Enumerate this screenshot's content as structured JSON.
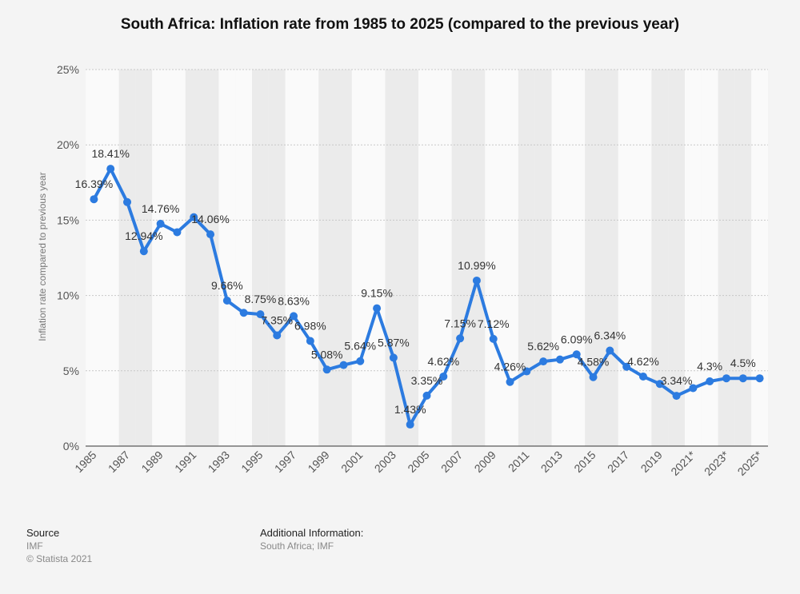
{
  "title": "South Africa: Inflation rate from 1985 to 2025 (compared to the previous year)",
  "footer": {
    "source_heading": "Source",
    "source_name": "IMF",
    "copyright": "© Statista 2021",
    "info_heading": "Additional Information:",
    "info_text": "South Africa; IMF"
  },
  "colors": {
    "line": "#2c7be0",
    "band": "#ebebeb",
    "background": "#f4f4f4"
  },
  "chart_data": {
    "type": "line",
    "ylabel": "Inflation rate compared to previous year",
    "ylim": [
      0,
      25
    ],
    "yticks": [
      0,
      5,
      10,
      15,
      20,
      25
    ],
    "ytick_labels": [
      "0%",
      "5%",
      "10%",
      "15%",
      "20%",
      "25%"
    ],
    "xtick_labels": [
      "1985",
      "1987",
      "1989",
      "1991",
      "1993",
      "1995",
      "1997",
      "1999",
      "2001",
      "2003",
      "2005",
      "2007",
      "2009",
      "2011",
      "2013",
      "2015",
      "2017",
      "2019",
      "2021*",
      "2023*",
      "2025*"
    ],
    "grid": true,
    "series": [
      {
        "x": [
          1985,
          1986,
          1987,
          1988,
          1989,
          1990,
          1991,
          1992,
          1993,
          1994,
          1995,
          1996,
          1997,
          1998,
          1999,
          2000,
          2001,
          2002,
          2003,
          2004,
          2005,
          2006,
          2007,
          2008,
          2009,
          2010,
          2011,
          2012,
          2013,
          2014,
          2015,
          2016,
          2017,
          2018,
          2019,
          2020,
          2021,
          2022,
          2023,
          2024,
          2025
        ],
        "values": [
          16.39,
          18.41,
          16.2,
          12.94,
          14.76,
          14.2,
          15.2,
          14.06,
          9.66,
          8.85,
          8.75,
          7.35,
          8.63,
          6.98,
          5.08,
          5.38,
          5.64,
          9.15,
          5.87,
          1.43,
          3.35,
          4.62,
          7.15,
          10.99,
          7.12,
          4.26,
          4.96,
          5.62,
          5.75,
          6.09,
          4.58,
          6.34,
          5.27,
          4.62,
          4.13,
          3.34,
          3.85,
          4.3,
          4.5,
          4.5,
          4.5
        ]
      }
    ],
    "data_labels": [
      {
        "year": 1985,
        "text": "16.39%"
      },
      {
        "year": 1986,
        "text": "18.41%"
      },
      {
        "year": 1988,
        "text": "12.94%"
      },
      {
        "year": 1989,
        "text": "14.76%"
      },
      {
        "year": 1992,
        "text": "14.06%"
      },
      {
        "year": 1993,
        "text": "9.66%"
      },
      {
        "year": 1995,
        "text": "8.75%"
      },
      {
        "year": 1996,
        "text": "7.35%"
      },
      {
        "year": 1997,
        "text": "8.63%"
      },
      {
        "year": 1998,
        "text": "6.98%"
      },
      {
        "year": 1999,
        "text": "5.08%"
      },
      {
        "year": 2001,
        "text": "5.64%"
      },
      {
        "year": 2002,
        "text": "9.15%"
      },
      {
        "year": 2003,
        "text": "5.87%"
      },
      {
        "year": 2004,
        "text": "1.43%"
      },
      {
        "year": 2005,
        "text": "3.35%"
      },
      {
        "year": 2006,
        "text": "4.62%"
      },
      {
        "year": 2007,
        "text": "7.15%"
      },
      {
        "year": 2008,
        "text": "10.99%"
      },
      {
        "year": 2009,
        "text": "7.12%"
      },
      {
        "year": 2010,
        "text": "4.26%"
      },
      {
        "year": 2012,
        "text": "5.62%"
      },
      {
        "year": 2014,
        "text": "6.09%"
      },
      {
        "year": 2015,
        "text": "4.58%"
      },
      {
        "year": 2016,
        "text": "6.34%"
      },
      {
        "year": 2018,
        "text": "4.62%"
      },
      {
        "year": 2020,
        "text": "3.34%"
      },
      {
        "year": 2022,
        "text": "4.3%"
      },
      {
        "year": 2024,
        "text": "4.5%"
      }
    ]
  }
}
